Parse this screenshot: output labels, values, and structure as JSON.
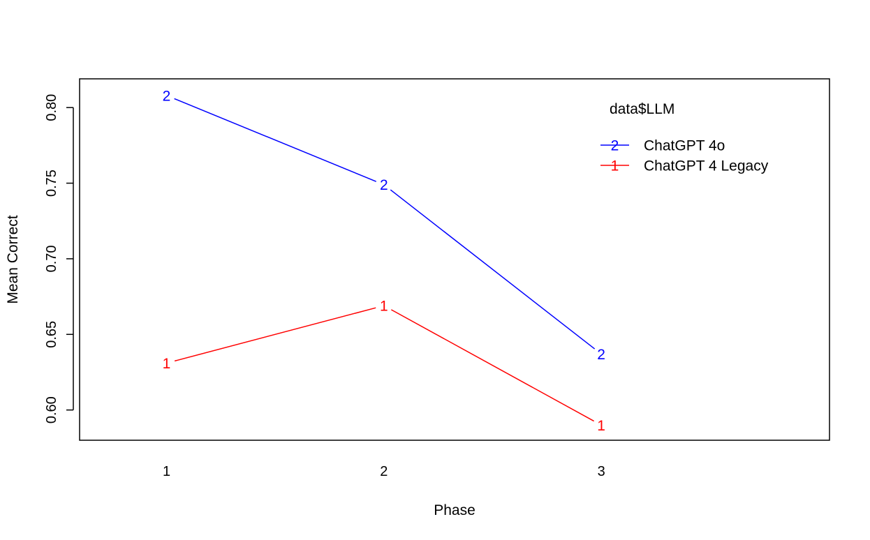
{
  "chart_data": {
    "type": "line",
    "title": "",
    "xlabel": "Phase",
    "ylabel": "Mean Correct",
    "x": [
      1,
      2,
      3
    ],
    "x_tick_labels": [
      "1",
      "2",
      "3"
    ],
    "xlim": [
      0.6,
      4.05
    ],
    "ylim": [
      0.58,
      0.819
    ],
    "y_ticks": [
      0.6,
      0.65,
      0.7,
      0.75,
      0.8
    ],
    "y_tick_labels": [
      "0.60",
      "0.65",
      "0.70",
      "0.75",
      "0.80"
    ],
    "grid": false,
    "legend": {
      "title": "data$LLM",
      "placement": "top-right"
    },
    "series": [
      {
        "name": "ChatGPT 4o",
        "marker": "2",
        "color": "#0000ff",
        "values": [
          0.808,
          0.749,
          0.637
        ]
      },
      {
        "name": "ChatGPT 4 Legacy",
        "marker": "1",
        "color": "#ff0000",
        "values": [
          0.631,
          0.669,
          0.59
        ]
      }
    ]
  }
}
